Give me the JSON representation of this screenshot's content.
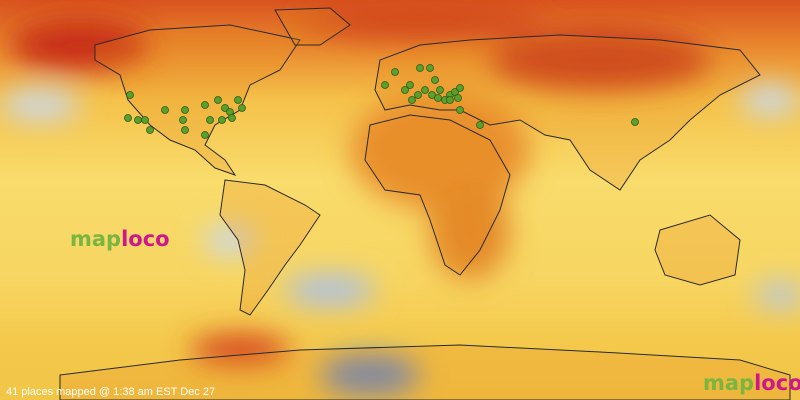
{
  "logo_left": {
    "part1": "map",
    "part2": "loco"
  },
  "logo_right": {
    "part1": "map",
    "part2": "loco"
  },
  "footer": "41 places mapped @ 1:38 am EST Dec 27"
}
